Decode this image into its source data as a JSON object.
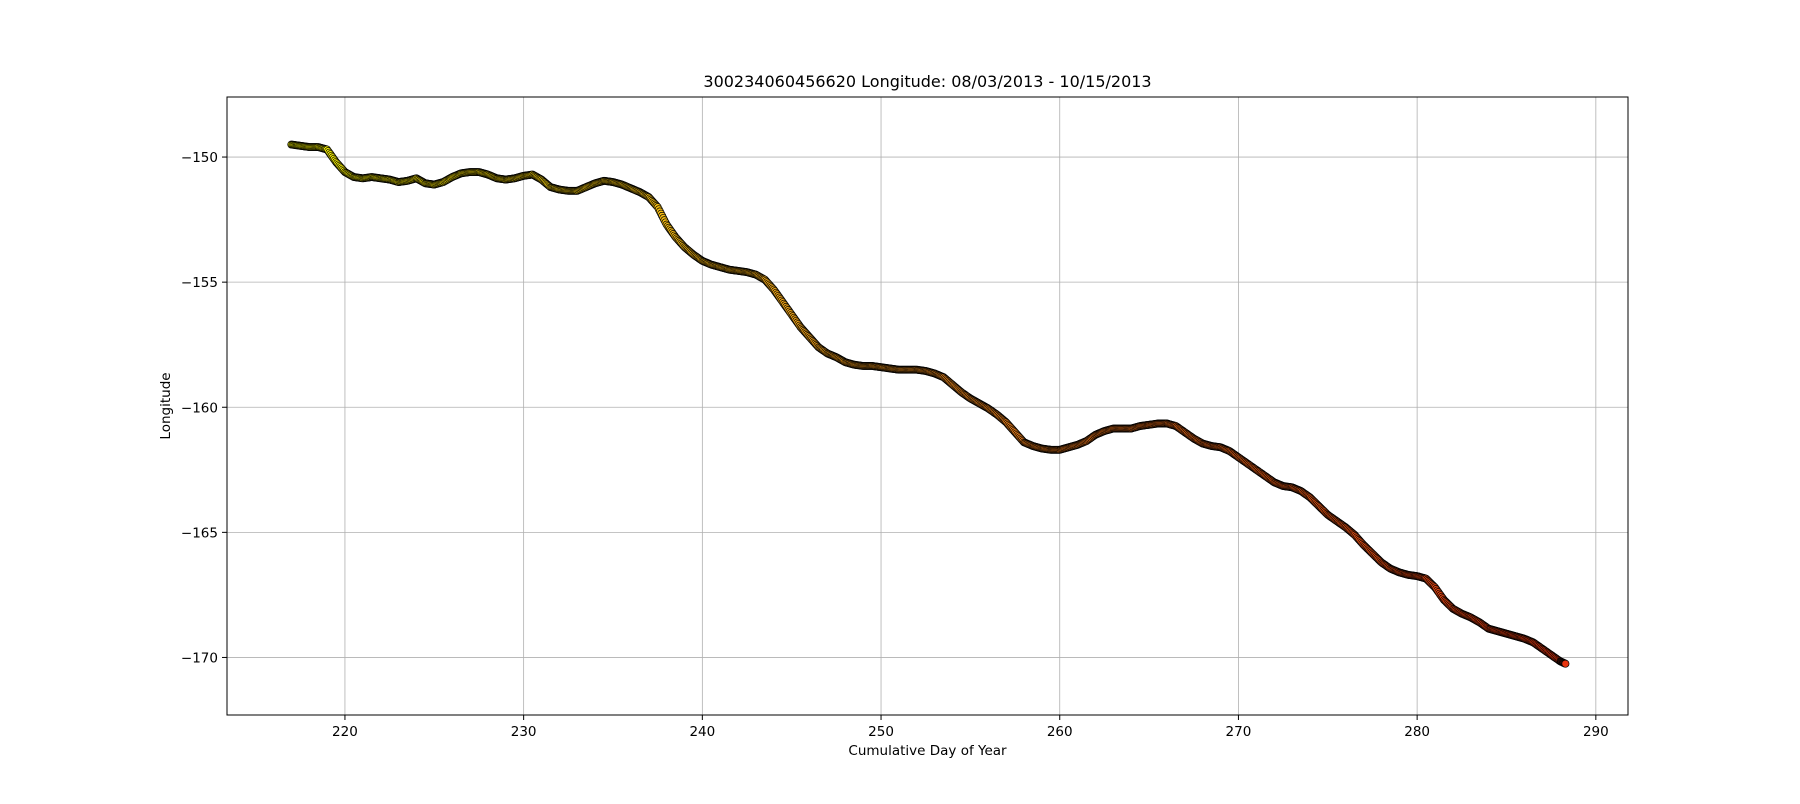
{
  "chart_data": {
    "type": "scatter",
    "title": "300234060456620 Longitude: 08/03/2013 - 10/15/2013",
    "xlabel": "Cumulative Day of Year",
    "ylabel": "Longitude",
    "xlim": [
      213.4,
      291.8
    ],
    "ylim": [
      -172.3,
      -147.6
    ],
    "xticks": [
      220,
      230,
      240,
      250,
      260,
      270,
      280,
      290
    ],
    "yticks": [
      -150,
      -155,
      -160,
      -165,
      -170
    ],
    "xtick_labels": [
      "220",
      "230",
      "240",
      "250",
      "260",
      "270",
      "280",
      "290"
    ],
    "ytick_labels": [
      "−150",
      "−155",
      "−160",
      "−165",
      "−170"
    ],
    "grid": true,
    "colormap": [
      "#ffff00",
      "#f08c1c",
      "#e8340e"
    ],
    "marker_edge_color": "#000000",
    "series": [
      {
        "x": [
          217.0,
          217.5,
          218.0,
          218.5,
          219.0,
          219.5,
          220.0,
          220.5,
          221.0,
          221.5,
          222.0,
          222.5,
          223.0,
          223.5,
          224.0,
          224.5,
          225.0,
          225.5,
          226.0,
          226.5,
          227.0,
          227.5,
          228.0,
          228.5,
          229.0,
          229.5,
          230.0,
          230.5,
          231.0,
          231.5,
          232.0,
          232.5,
          233.0,
          233.5,
          234.0,
          234.5,
          235.0,
          235.5,
          236.0,
          236.5,
          237.0,
          237.5,
          238.0,
          238.5,
          239.0,
          239.5,
          240.0,
          240.5,
          241.0,
          241.5,
          242.0,
          242.5,
          243.0,
          243.5,
          244.0,
          244.5,
          245.0,
          245.5,
          246.0,
          246.5,
          247.0,
          247.5,
          248.0,
          248.5,
          249.0,
          249.5,
          250.0,
          250.5,
          251.0,
          251.5,
          252.0,
          252.5,
          253.0,
          253.5,
          254.0,
          254.5,
          255.0,
          255.5,
          256.0,
          256.5,
          257.0,
          257.5,
          258.0,
          258.5,
          259.0,
          259.5,
          260.0,
          260.5,
          261.0,
          261.5,
          262.0,
          262.5,
          263.0,
          263.5,
          264.0,
          264.5,
          265.0,
          265.5,
          266.0,
          266.5,
          267.0,
          267.5,
          268.0,
          268.5,
          269.0,
          269.5,
          270.0,
          270.5,
          271.0,
          271.5,
          272.0,
          272.5,
          273.0,
          273.5,
          274.0,
          274.5,
          275.0,
          275.5,
          276.0,
          276.5,
          277.0,
          277.5,
          278.0,
          278.5,
          279.0,
          279.5,
          280.0,
          280.5,
          281.0,
          281.5,
          282.0,
          282.5,
          283.0,
          283.5,
          284.0,
          284.5,
          285.0,
          285.5,
          286.0,
          286.5,
          287.0,
          287.5,
          288.0,
          288.3
        ],
        "y": [
          -149.5,
          -149.55,
          -149.6,
          -149.6,
          -149.7,
          -150.2,
          -150.6,
          -150.8,
          -150.85,
          -150.8,
          -150.85,
          -150.9,
          -151.0,
          -150.95,
          -150.85,
          -151.05,
          -151.1,
          -151.0,
          -150.8,
          -150.65,
          -150.6,
          -150.6,
          -150.7,
          -150.85,
          -150.9,
          -150.85,
          -150.75,
          -150.7,
          -150.9,
          -151.2,
          -151.3,
          -151.35,
          -151.35,
          -151.2,
          -151.05,
          -150.95,
          -151.0,
          -151.1,
          -151.25,
          -151.4,
          -151.6,
          -152.0,
          -152.7,
          -153.2,
          -153.6,
          -153.9,
          -154.15,
          -154.3,
          -154.4,
          -154.5,
          -154.55,
          -154.6,
          -154.7,
          -154.9,
          -155.3,
          -155.8,
          -156.3,
          -156.8,
          -157.2,
          -157.6,
          -157.85,
          -158.0,
          -158.2,
          -158.3,
          -158.35,
          -158.35,
          -158.4,
          -158.45,
          -158.5,
          -158.5,
          -158.5,
          -158.55,
          -158.65,
          -158.8,
          -159.1,
          -159.4,
          -159.65,
          -159.85,
          -160.05,
          -160.3,
          -160.6,
          -161.0,
          -161.4,
          -161.55,
          -161.65,
          -161.7,
          -161.7,
          -161.6,
          -161.5,
          -161.35,
          -161.1,
          -160.95,
          -160.85,
          -160.85,
          -160.85,
          -160.75,
          -160.7,
          -160.65,
          -160.65,
          -160.75,
          -161.0,
          -161.25,
          -161.45,
          -161.55,
          -161.6,
          -161.75,
          -162.0,
          -162.25,
          -162.5,
          -162.75,
          -163.0,
          -163.15,
          -163.2,
          -163.35,
          -163.6,
          -163.95,
          -164.3,
          -164.55,
          -164.8,
          -165.1,
          -165.5,
          -165.85,
          -166.2,
          -166.45,
          -166.6,
          -166.7,
          -166.75,
          -166.85,
          -167.2,
          -167.7,
          -168.05,
          -168.25,
          -168.4,
          -168.6,
          -168.85,
          -168.95,
          -169.05,
          -169.15,
          -169.25,
          -169.4,
          -169.65,
          -169.9,
          -170.15,
          -170.25
        ]
      }
    ]
  }
}
